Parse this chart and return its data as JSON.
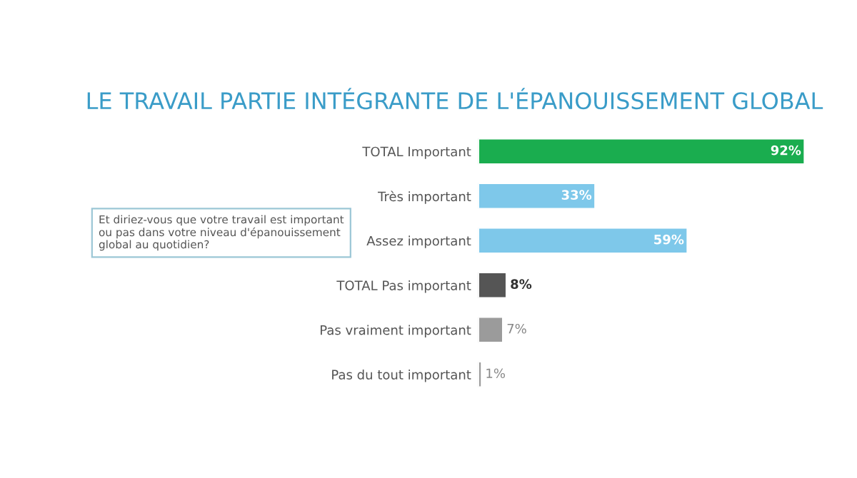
{
  "chart_data": {
    "type": "bar",
    "orientation": "horizontal",
    "title": "LE TRAVAIL PARTIE INTÉGRANTE DE L'ÉPANOUISSEMENT GLOBAL",
    "categories": [
      "TOTAL Important",
      "Très important",
      "Assez important",
      "TOTAL Pas important",
      "Pas vraiment important",
      "Pas du tout important"
    ],
    "values": [
      92,
      33,
      59,
      8,
      7,
      1
    ],
    "colors": [
      "#1aad4f",
      "#7ec8ea",
      "#7ec8ea",
      "#555555",
      "#9b9b9b",
      "#9b9b9b"
    ],
    "value_labels": [
      "92%",
      "33%",
      "59%",
      "8%",
      "7%",
      "1%"
    ],
    "tick_labels": "y",
    "grid": false,
    "legend": false,
    "annotations": [
      "Et diriez-vous que votre travail est important ou pas dans votre niveau d'épanouissement global au quotidien?"
    ]
  }
}
